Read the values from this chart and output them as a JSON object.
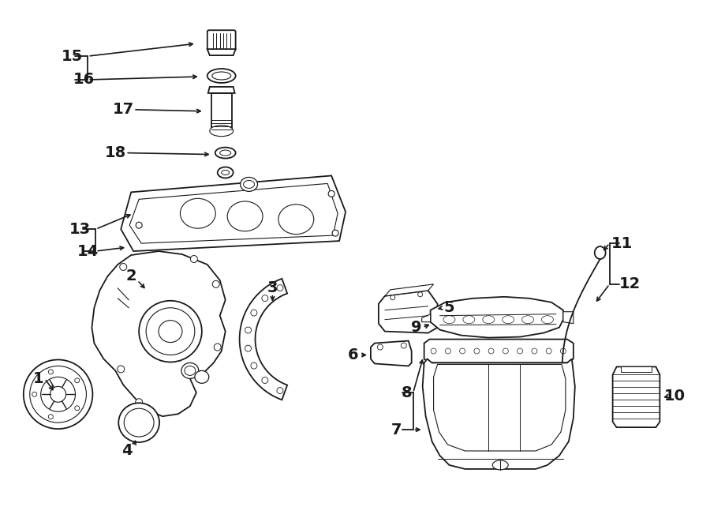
{
  "bg_color": "#ffffff",
  "line_color": "#1a1a1a",
  "lw": 1.3,
  "fig_w": 9.0,
  "fig_h": 6.61,
  "dpi": 100,
  "fs": 14
}
